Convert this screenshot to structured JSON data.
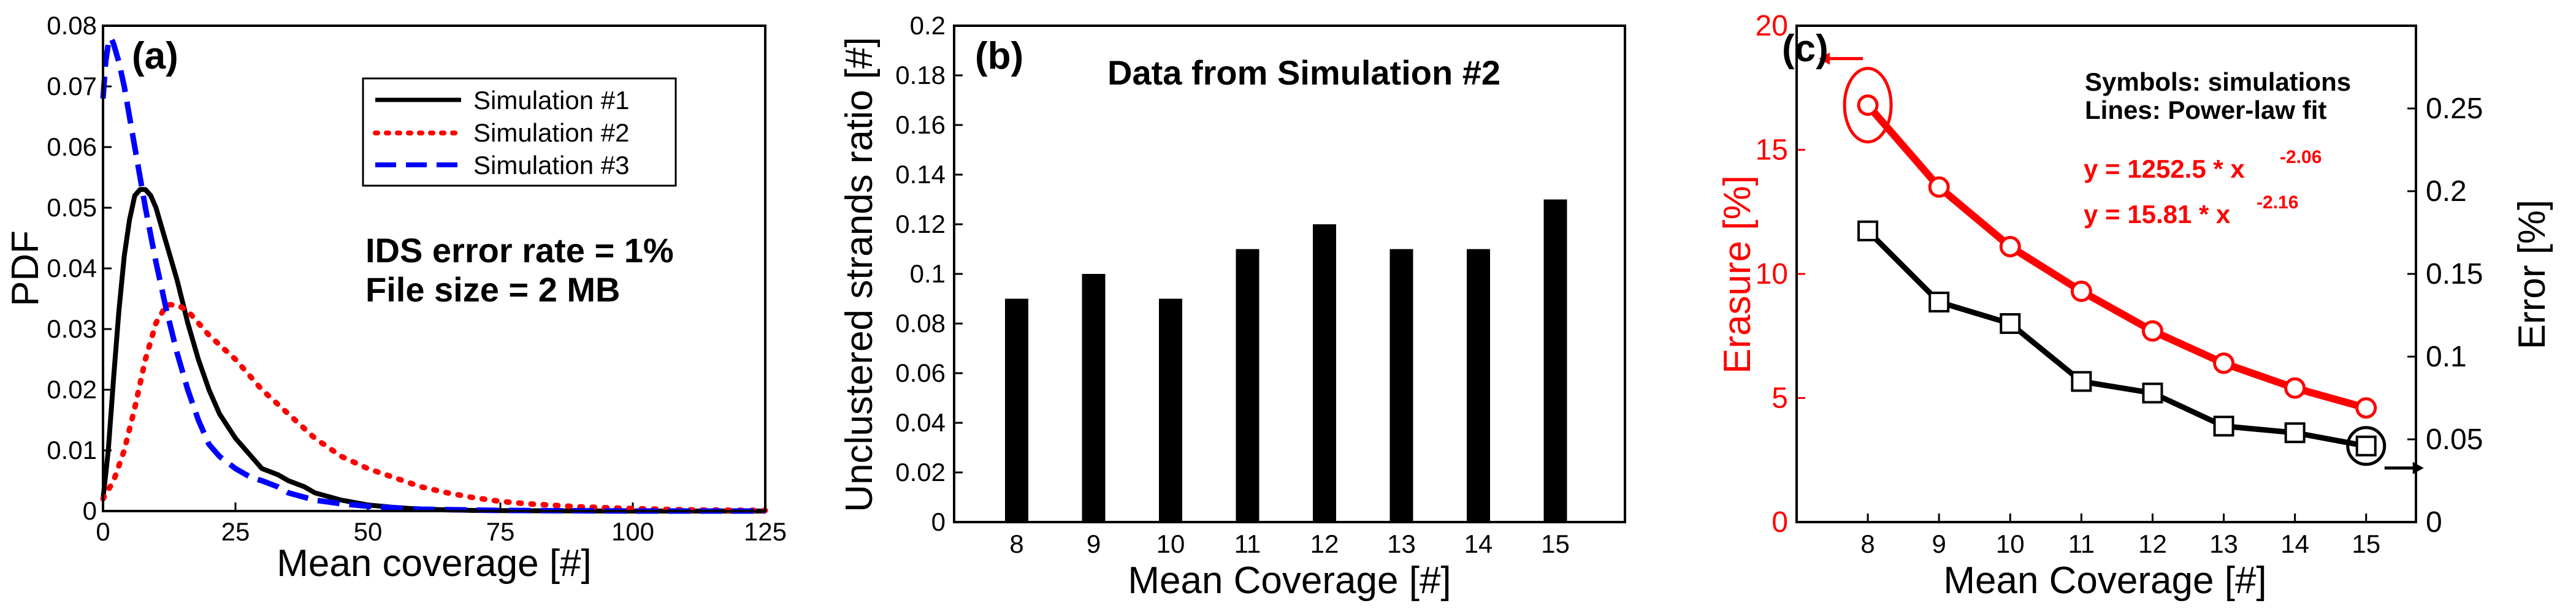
{
  "chart_data": [
    {
      "type": "line",
      "panel_label": "(a)",
      "xlabel": "Mean coverage [#]",
      "ylabel": "PDF",
      "xlim": [
        0,
        125
      ],
      "ylim": [
        0,
        0.08
      ],
      "x_ticks": [
        0,
        25,
        50,
        75,
        100,
        125
      ],
      "y_ticks": [
        0,
        0.01,
        0.02,
        0.03,
        0.04,
        0.05,
        0.06,
        0.07,
        0.08
      ],
      "legend_position": "top-right",
      "annotations": [
        "IDS error rate = 1%",
        "File size = 2 MB"
      ],
      "series": [
        {
          "name": "Simulation #1",
          "color": "#000000",
          "style": "solid",
          "x": [
            0,
            1,
            2,
            3,
            4,
            5,
            6,
            7,
            8,
            9,
            10,
            11,
            12,
            14,
            16,
            18,
            20,
            22,
            25,
            28,
            30,
            33,
            35,
            38,
            40,
            45,
            50,
            55,
            60,
            70,
            80,
            100,
            125
          ],
          "y": [
            0.002,
            0.01,
            0.022,
            0.033,
            0.042,
            0.048,
            0.052,
            0.053,
            0.053,
            0.052,
            0.05,
            0.047,
            0.044,
            0.038,
            0.031,
            0.025,
            0.02,
            0.016,
            0.012,
            0.009,
            0.007,
            0.006,
            0.005,
            0.004,
            0.003,
            0.0018,
            0.001,
            0.0006,
            0.0003,
            0.0001,
            5e-05,
            0.0,
            0.0
          ]
        },
        {
          "name": "Simulation #2",
          "color": "#ff0000",
          "style": "dotted",
          "x": [
            0,
            2,
            4,
            6,
            8,
            10,
            12,
            14,
            16,
            18,
            20,
            25,
            30,
            35,
            40,
            45,
            50,
            55,
            60,
            65,
            70,
            75,
            80,
            90,
            100,
            110,
            125
          ],
          "y": [
            0.002,
            0.005,
            0.01,
            0.017,
            0.025,
            0.031,
            0.034,
            0.034,
            0.033,
            0.031,
            0.029,
            0.025,
            0.02,
            0.016,
            0.012,
            0.009,
            0.007,
            0.0055,
            0.004,
            0.003,
            0.0022,
            0.0016,
            0.0012,
            0.0007,
            0.0004,
            0.0002,
            0.0001
          ]
        },
        {
          "name": "Simulation #3",
          "color": "#0000ff",
          "style": "dashed",
          "x": [
            0,
            0.5,
            1,
            1.5,
            2,
            3,
            4,
            5,
            6,
            7,
            8,
            10,
            12,
            14,
            16,
            18,
            20,
            22,
            25,
            28,
            30,
            33,
            35,
            40,
            45,
            50,
            60,
            75,
            100,
            125
          ],
          "y": [
            0.068,
            0.074,
            0.077,
            0.078,
            0.077,
            0.074,
            0.07,
            0.065,
            0.06,
            0.055,
            0.05,
            0.041,
            0.033,
            0.026,
            0.02,
            0.015,
            0.011,
            0.009,
            0.007,
            0.0055,
            0.005,
            0.004,
            0.003,
            0.0018,
            0.0012,
            0.0008,
            0.0003,
            0.0001,
            0.0,
            0.0
          ]
        }
      ]
    },
    {
      "type": "bar",
      "panel_label": "(b)",
      "title": "Data from Simulation #2",
      "xlabel": "Mean Coverage [#]",
      "ylabel": "Unclustered strands ratio [#]",
      "categories": [
        "8",
        "9",
        "10",
        "11",
        "12",
        "13",
        "14",
        "15"
      ],
      "values": [
        0.09,
        0.1,
        0.09,
        0.11,
        0.12,
        0.11,
        0.11,
        0.13
      ],
      "ylim": [
        0,
        0.2
      ],
      "y_ticks": [
        0,
        0.02,
        0.04,
        0.06,
        0.08,
        0.1,
        0.12,
        0.14,
        0.16,
        0.18,
        0.2
      ],
      "y_tick_labels": [
        "0",
        "0.02",
        "0.04",
        "0.06",
        "0.08",
        "0.1",
        "0.12",
        "0.14",
        "0.16",
        "0.18",
        "0.2"
      ]
    },
    {
      "type": "scatter",
      "panel_label": "(c)",
      "xlabel": "Mean Coverage [#]",
      "ylabel_left": "Erasure [%]",
      "ylabel_right": "Error [%]",
      "xlim": [
        7,
        15.7
      ],
      "ylim_left": [
        0,
        20
      ],
      "ylim_right": [
        0,
        0.3
      ],
      "x_ticks": [
        8,
        9,
        10,
        11,
        12,
        13,
        14,
        15
      ],
      "y_ticks_left": [
        0,
        5,
        10,
        15,
        20
      ],
      "y_ticks_right": [
        0,
        0.05,
        0.1,
        0.15,
        0.2,
        0.25
      ],
      "y_tick_labels_right": [
        "0",
        "0.05",
        "0.1",
        "0.15",
        "0.2",
        "0.25"
      ],
      "annotations": [
        "Symbols: simulations",
        "Lines: Power-law fit"
      ],
      "fit_labels": [
        {
          "base": "y = 1252.5 * x",
          "exp": "-2.06",
          "color": "#ff0000"
        },
        {
          "base": "y = 15.81 * x",
          "exp": "-2.16",
          "color": "#ff0000"
        }
      ],
      "series": [
        {
          "name": "Erasure",
          "axis": "left",
          "color": "#ff0000",
          "marker": "circle",
          "x": [
            8,
            9,
            10,
            11,
            12,
            13,
            14,
            15
          ],
          "y": [
            16.8,
            13.5,
            11.1,
            9.3,
            7.7,
            6.4,
            5.4,
            4.6
          ],
          "fit": {
            "a": 1252.5,
            "b": -2.06
          }
        },
        {
          "name": "Error",
          "axis": "right",
          "color": "#000000",
          "marker": "square",
          "x": [
            8,
            9,
            10,
            11,
            12,
            13,
            14,
            15
          ],
          "y": [
            0.176,
            0.133,
            0.12,
            0.085,
            0.078,
            0.058,
            0.054,
            0.046
          ],
          "fit": {
            "a": 15.81,
            "b": -2.16
          }
        }
      ]
    }
  ]
}
